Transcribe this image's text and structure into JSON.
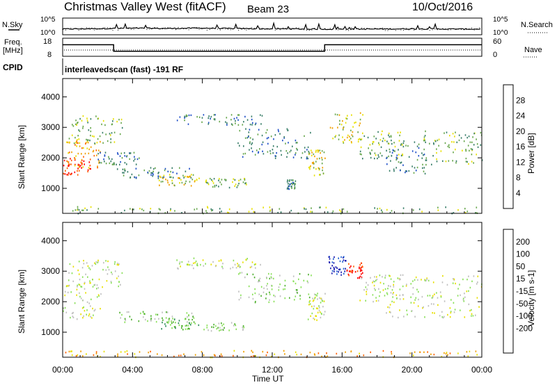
{
  "header": {
    "station": "Christmas Valley West (fitACF)",
    "beam": "Beam 23",
    "date": "10/Oct/2016"
  },
  "side_labels": {
    "nsky": "N.Sky",
    "nsearch": "N.Search",
    "freq_line1": "Freq.",
    "freq_line2": "[MHz]",
    "nave": "Nave",
    "cpid": "CPID"
  },
  "summary": {
    "noise_left_ticks": [
      "10^5",
      "10^0"
    ],
    "noise_right_ticks": [
      "10^5",
      "10^0"
    ],
    "freq_left_ticks": [
      "18",
      "8"
    ],
    "freq_right_ticks": [
      "60",
      "0"
    ],
    "cpid_text": "interleavedscan (fast) -191 RF"
  },
  "chart_data": [
    {
      "type": "line",
      "panel": "noise",
      "series": [
        {
          "name": "N.Sky",
          "x": [
            "00:00",
            "02:00",
            "04:00",
            "06:00",
            "08:00",
            "10:00",
            "12:00",
            "14:00",
            "16:00",
            "18:00",
            "20:00",
            "22:00",
            "24:00"
          ],
          "values": [
            30,
            40,
            55,
            45,
            60,
            40,
            35,
            30,
            25,
            30,
            35,
            30,
            28
          ]
        },
        {
          "name": "N.Search",
          "x": [
            "00:00",
            "04:00",
            "08:00",
            "12:00",
            "16:00",
            "20:00",
            "24:00"
          ],
          "values": [
            20,
            25,
            22,
            20,
            18,
            20,
            20
          ]
        }
      ],
      "ylim_left": [
        1,
        100000
      ],
      "yscale": "log"
    },
    {
      "type": "line",
      "panel": "frequency",
      "series": [
        {
          "name": "Freq.",
          "x": [
            "00:00",
            "02:55",
            "02:55",
            "15:00",
            "15:00",
            "24:00"
          ],
          "values": [
            14.5,
            14.5,
            10.6,
            10.6,
            14.5,
            14.5
          ]
        },
        {
          "name": "Nave",
          "x": [
            "00:00",
            "24:00"
          ],
          "values": [
            22,
            22
          ]
        }
      ],
      "ylim_left": [
        8,
        18
      ],
      "ylim_right": [
        0,
        60
      ]
    },
    {
      "type": "heatmap",
      "panel": "power",
      "xlabel": "",
      "ylabel": "Slant Range [km]",
      "x_ticks": [
        "00:00",
        "04:00",
        "08:00",
        "12:00",
        "16:00",
        "20:00",
        "00:00"
      ],
      "y_ticks": [
        "1000",
        "2000",
        "3000",
        "4000"
      ],
      "xlim_hours": [
        0,
        24
      ],
      "ylim_km": [
        180,
        4600
      ],
      "colorbar": {
        "label": "Power [dB]",
        "ticks": [
          "4",
          "8",
          "12",
          "16",
          "20",
          "24",
          "28"
        ],
        "colors": [
          "#0a2fff",
          "#2050c8",
          "#3a7f6a",
          "#6aa84f",
          "#e8e000",
          "#f0a000",
          "#ff6000",
          "#ff0000"
        ]
      },
      "regions": [
        {
          "t0": 0.0,
          "t1": 1.6,
          "r0": 1450,
          "r1": 2000,
          "level": 7
        },
        {
          "t0": 0.2,
          "t1": 2.2,
          "r0": 1700,
          "r1": 2600,
          "level": 5
        },
        {
          "t0": 0.3,
          "t1": 3.4,
          "r0": 2500,
          "r1": 3400,
          "level": 3
        },
        {
          "t0": 2.0,
          "t1": 4.5,
          "r0": 1800,
          "r1": 2200,
          "level": 2
        },
        {
          "t0": 3.0,
          "t1": 7.5,
          "r0": 1350,
          "r1": 1700,
          "level": 2
        },
        {
          "t0": 5.5,
          "t1": 7.8,
          "r0": 1100,
          "r1": 1500,
          "level": 4
        },
        {
          "t0": 8.0,
          "t1": 10.5,
          "r0": 1050,
          "r1": 1350,
          "level": 3
        },
        {
          "t0": 6.5,
          "t1": 11.5,
          "r0": 3100,
          "r1": 3450,
          "level": 2
        },
        {
          "t0": 10.0,
          "t1": 14.2,
          "r0": 2000,
          "r1": 3000,
          "level": 2
        },
        {
          "t0": 14.0,
          "t1": 15.0,
          "r0": 1400,
          "r1": 2300,
          "level": 4
        },
        {
          "t0": 12.8,
          "t1": 13.3,
          "r0": 1000,
          "r1": 1300,
          "level": 2
        },
        {
          "t0": 15.2,
          "t1": 17.2,
          "r0": 2500,
          "r1": 3500,
          "level": 4
        },
        {
          "t0": 17.0,
          "t1": 19.5,
          "r0": 2000,
          "r1": 2900,
          "level": 3
        },
        {
          "t0": 18.5,
          "t1": 21.0,
          "r0": 1500,
          "r1": 2600,
          "level": 2
        },
        {
          "t0": 20.5,
          "t1": 24.0,
          "r0": 1800,
          "r1": 2900,
          "level": 3
        },
        {
          "t0": 0.0,
          "t1": 24.0,
          "r0": 200,
          "r1": 420,
          "level": 3
        }
      ]
    },
    {
      "type": "heatmap",
      "panel": "velocity",
      "xlabel": "Time UT",
      "ylabel": "Slant Range [km]",
      "x_ticks": [
        "00:00",
        "04:00",
        "08:00",
        "12:00",
        "16:00",
        "20:00",
        "00:00"
      ],
      "y_ticks": [
        "1000",
        "2000",
        "3000",
        "4000"
      ],
      "xlim_hours": [
        0,
        24
      ],
      "ylim_km": [
        180,
        4600
      ],
      "colorbar": {
        "label": "Velocity [m s-1]",
        "ticks": [
          "200",
          "100",
          "50",
          "15",
          "-15",
          "-50",
          "-100",
          "-200"
        ],
        "colors": [
          "#1a1ab0",
          "#2060d0",
          "#2f8f5a",
          "#50b030",
          "#8ae05a",
          "#c0c0c0",
          "#e8e000",
          "#f0a000",
          "#ff6000",
          "#ff0000"
        ]
      },
      "regions": [
        {
          "t0": 0.0,
          "t1": 2.2,
          "r0": 1450,
          "r1": 2600,
          "level": 5
        },
        {
          "t0": 0.3,
          "t1": 3.4,
          "r0": 2500,
          "r1": 3400,
          "level": 5
        },
        {
          "t0": 3.0,
          "t1": 7.5,
          "r0": 1350,
          "r1": 1700,
          "level": 4
        },
        {
          "t0": 5.5,
          "t1": 7.8,
          "r0": 1100,
          "r1": 1500,
          "level": 3
        },
        {
          "t0": 8.0,
          "t1": 10.5,
          "r0": 1050,
          "r1": 1350,
          "level": 4
        },
        {
          "t0": 6.5,
          "t1": 11.5,
          "r0": 3100,
          "r1": 3450,
          "level": 5
        },
        {
          "t0": 10.0,
          "t1": 14.2,
          "r0": 2000,
          "r1": 3000,
          "level": 4
        },
        {
          "t0": 14.0,
          "t1": 15.0,
          "r0": 1400,
          "r1": 2300,
          "level": 5
        },
        {
          "t0": 15.2,
          "t1": 16.2,
          "r0": 2900,
          "r1": 3500,
          "level": 0
        },
        {
          "t0": 16.2,
          "t1": 17.2,
          "r0": 2800,
          "r1": 3300,
          "level": 9
        },
        {
          "t0": 17.0,
          "t1": 19.5,
          "r0": 2000,
          "r1": 2900,
          "level": 5
        },
        {
          "t0": 18.5,
          "t1": 24.0,
          "r0": 1500,
          "r1": 2900,
          "level": 5
        },
        {
          "t0": 0.0,
          "t1": 24.0,
          "r0": 200,
          "r1": 420,
          "level": 7
        }
      ]
    }
  ]
}
